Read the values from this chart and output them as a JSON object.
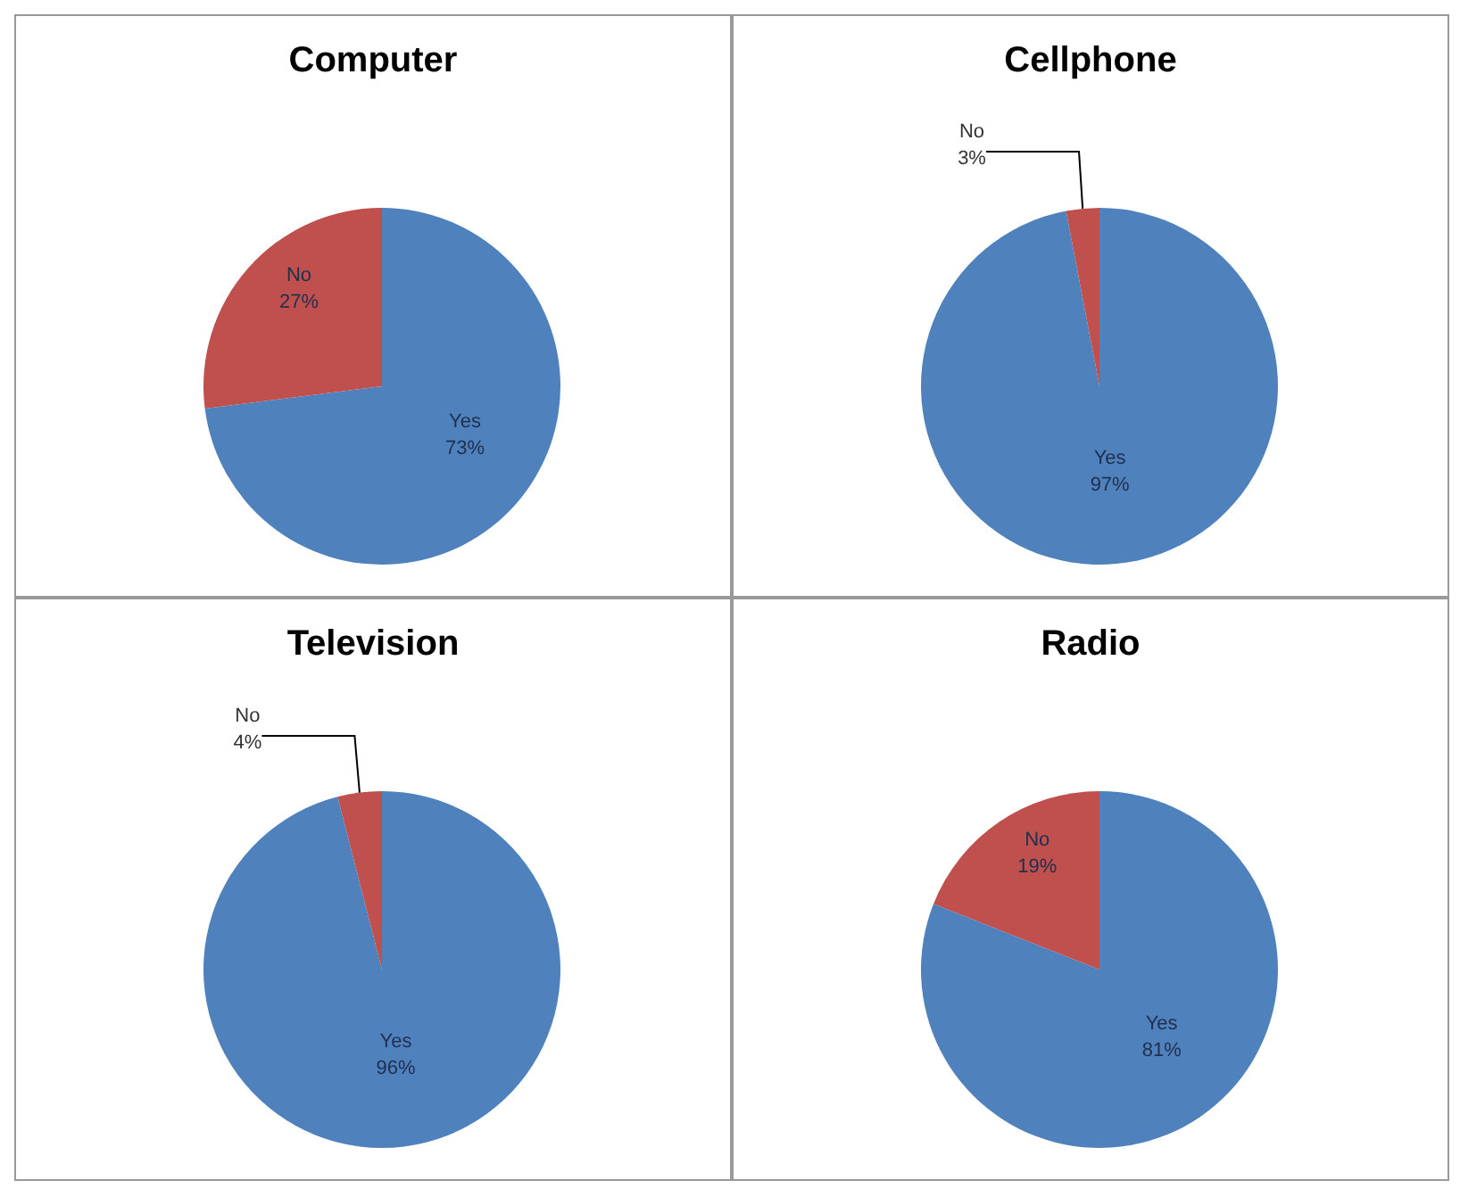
{
  "chart_data": [
    {
      "type": "pie",
      "title": "Computer",
      "categories": [
        "Yes",
        "No"
      ],
      "values": [
        73,
        27
      ],
      "colors": [
        "#4f81bd",
        "#c0504d"
      ],
      "value_labels": [
        "73%",
        "27%"
      ],
      "legend": false
    },
    {
      "type": "pie",
      "title": "Cellphone",
      "categories": [
        "Yes",
        "No"
      ],
      "values": [
        97,
        3
      ],
      "colors": [
        "#4f81bd",
        "#c0504d"
      ],
      "value_labels": [
        "97%",
        "3%"
      ],
      "legend": false
    },
    {
      "type": "pie",
      "title": "Television",
      "categories": [
        "Yes",
        "No"
      ],
      "values": [
        96,
        4
      ],
      "colors": [
        "#4f81bd",
        "#c0504d"
      ],
      "value_labels": [
        "96%",
        "4%"
      ],
      "legend": false
    },
    {
      "type": "pie",
      "title": "Radio",
      "categories": [
        "Yes",
        "No"
      ],
      "values": [
        81,
        19
      ],
      "colors": [
        "#4f81bd",
        "#c0504d"
      ],
      "value_labels": [
        "81%",
        "19%"
      ],
      "legend": false
    }
  ]
}
